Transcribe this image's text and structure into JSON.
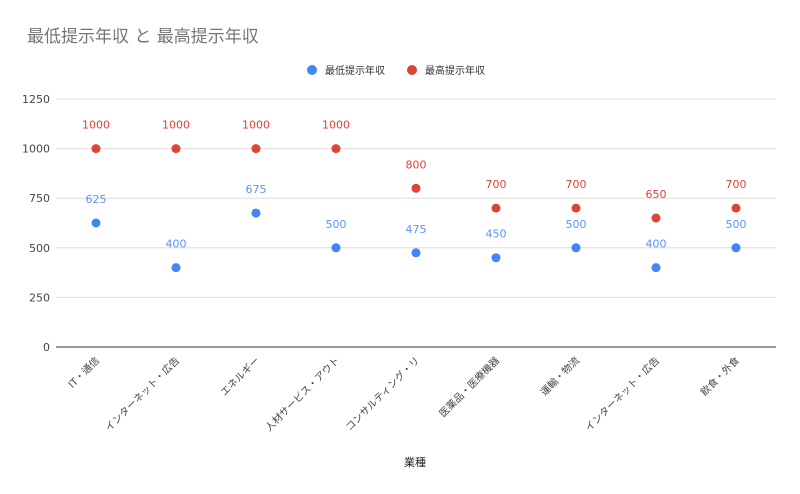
{
  "chart_data": {
    "type": "scatter",
    "title": "最低提示年収 と 最高提示年収",
    "xlabel": "業種",
    "ylabel": "",
    "ylim": [
      0,
      1250
    ],
    "yticks": [
      0,
      250,
      500,
      750,
      1000,
      1250
    ],
    "grid": true,
    "legend_position": "top",
    "categories": [
      "IT・通信",
      "インターネット・広告",
      "エネルギー",
      "人材サービス・アウト",
      "コンサルティング・リ",
      "医薬品・医療機器",
      "運輸・物流",
      "インターネット・広告",
      "飲食・外食"
    ],
    "series": [
      {
        "name": "最低提示年収",
        "color": "#4285f4",
        "label_color": "#5b95f5",
        "values": [
          625,
          400,
          675,
          500,
          475,
          450,
          500,
          400,
          500
        ]
      },
      {
        "name": "最高提示年収",
        "color": "#db4437",
        "label_color": "#db4437",
        "values": [
          1000,
          1000,
          1000,
          1000,
          800,
          700,
          700,
          650,
          700
        ]
      }
    ]
  }
}
